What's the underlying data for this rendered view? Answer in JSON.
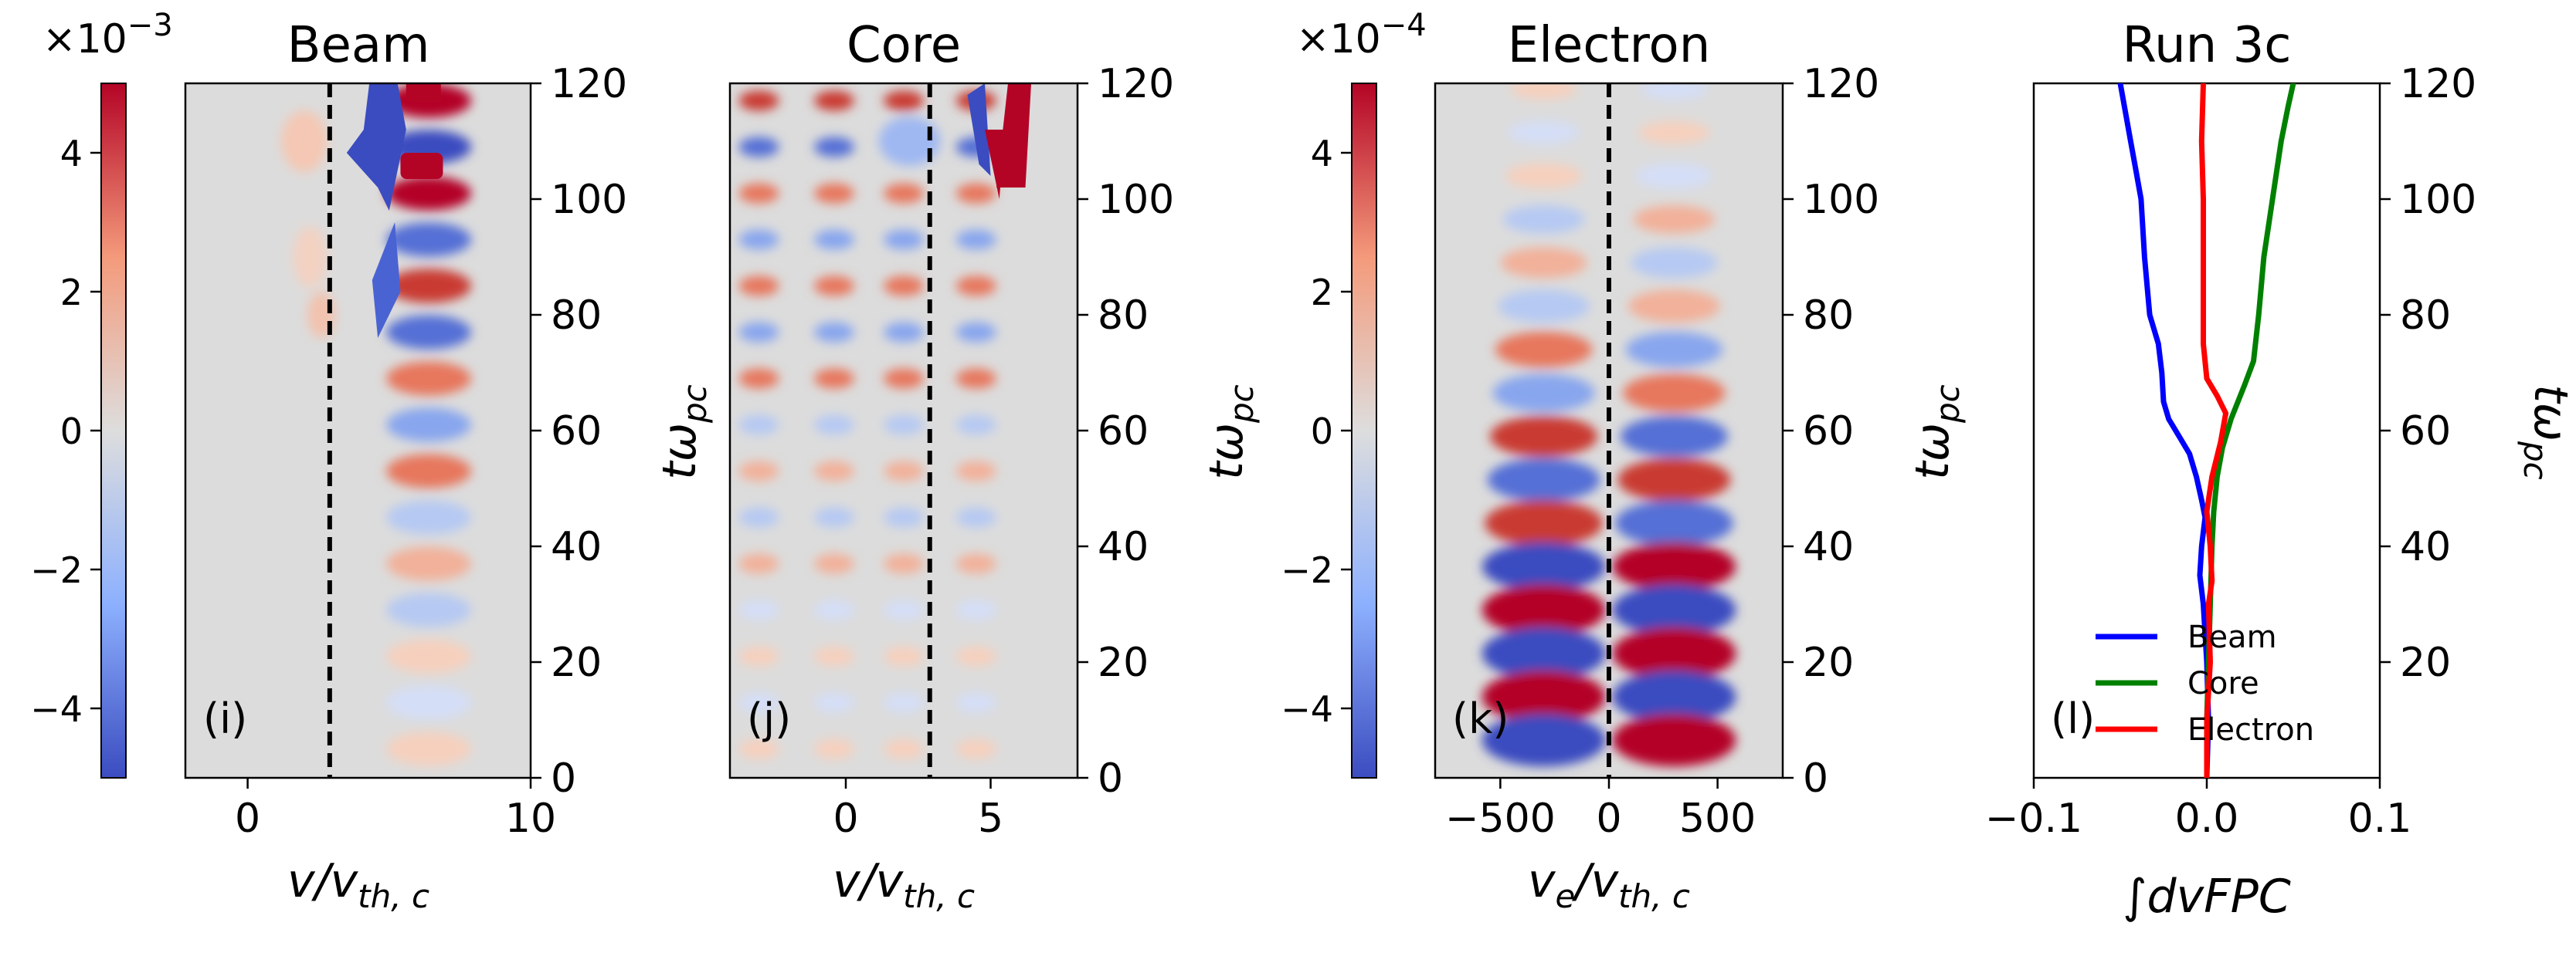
{
  "chart_data": [
    {
      "type": "heatmap",
      "panel": "i",
      "title": "Beam",
      "panel_label": "(i)",
      "xlabel": "v/v",
      "xlabel_sub": "th, c",
      "ylabel": "tω",
      "ylabel_sub": "pc",
      "xlim": [
        -2.2,
        10
      ],
      "ylim": [
        0,
        120
      ],
      "xticks": [
        0,
        10
      ],
      "xtick_labels": [
        "0",
        "10"
      ],
      "yticks": [
        0,
        20,
        40,
        60,
        80,
        100,
        120
      ],
      "ytick_labels": [
        "0",
        "20",
        "40",
        "60",
        "80",
        "100",
        "120"
      ],
      "dashed_vline_x": 2.9,
      "colorbar": {
        "exponent_label": "×10",
        "exponent_power": "−3",
        "range": [
          -5,
          5
        ],
        "ticks": [
          -4,
          -2,
          0,
          2,
          4
        ],
        "tick_labels": [
          "−4",
          "−2",
          "0",
          "2",
          "4"
        ]
      }
    },
    {
      "type": "heatmap",
      "panel": "j",
      "title": "Core",
      "panel_label": "(j)",
      "xlabel": "v/v",
      "xlabel_sub": "th, c",
      "ylabel": "tω",
      "ylabel_sub": "pc",
      "xlim": [
        -4,
        8
      ],
      "ylim": [
        0,
        120
      ],
      "xticks": [
        0,
        5
      ],
      "xtick_labels": [
        "0",
        "5"
      ],
      "yticks": [
        0,
        20,
        40,
        60,
        80,
        100,
        120
      ],
      "ytick_labels": [
        "0",
        "20",
        "40",
        "60",
        "80",
        "100",
        "120"
      ],
      "dashed_vline_x": 2.9
    },
    {
      "type": "heatmap",
      "panel": "k",
      "title": "Electron",
      "panel_label": "(k)",
      "xlabel": "v",
      "xlabel_sub1": "e",
      "xlabel_mid": "/v",
      "xlabel_sub": "th, c",
      "ylabel": "tω",
      "ylabel_sub": "pc",
      "xlim": [
        -800,
        800
      ],
      "ylim": [
        0,
        120
      ],
      "xticks": [
        -500,
        0,
        500
      ],
      "xtick_labels": [
        "−500",
        "0",
        "500"
      ],
      "yticks": [
        0,
        20,
        40,
        60,
        80,
        100,
        120
      ],
      "ytick_labels": [
        "0",
        "20",
        "40",
        "60",
        "80",
        "100",
        "120"
      ],
      "dashed_vline_x": 0,
      "colorbar": {
        "exponent_label": "×10",
        "exponent_power": "−4",
        "range": [
          -5,
          5
        ],
        "ticks": [
          -4,
          -2,
          0,
          2,
          4
        ],
        "tick_labels": [
          "−4",
          "−2",
          "0",
          "2",
          "4"
        ]
      }
    },
    {
      "type": "line",
      "panel": "l",
      "title": "Run 3c",
      "panel_label": "(l)",
      "xlabel": "∫dvFPC",
      "ylabel": "tω",
      "ylabel_sub": "pc",
      "xlim": [
        -0.1,
        0.1
      ],
      "ylim": [
        0,
        120
      ],
      "xticks": [
        -0.1,
        0.0,
        0.1
      ],
      "xtick_labels": [
        "−0.1",
        "0.0",
        "0.1"
      ],
      "yticks": [
        20,
        40,
        60,
        80,
        100,
        120
      ],
      "ytick_labels": [
        "20",
        "40",
        "60",
        "80",
        "100",
        "120"
      ],
      "legend_position": "lower-left",
      "series": [
        {
          "name": "Beam",
          "color": "#0000ff",
          "x": [
            0,
            0.001,
            0.0,
            -0.002,
            -0.004,
            -0.003,
            -0.001,
            -0.003,
            -0.006,
            -0.01,
            -0.016,
            -0.022,
            -0.025,
            -0.026,
            -0.028,
            -0.033,
            -0.036,
            -0.038,
            -0.041,
            -0.044,
            -0.047,
            -0.05
          ],
          "y": [
            0,
            10,
            20,
            30,
            35,
            40,
            45,
            48,
            52,
            56,
            59,
            62,
            65,
            70,
            75,
            80,
            90,
            100,
            105,
            110,
            115,
            120
          ]
        },
        {
          "name": "Core",
          "color": "#008000",
          "x": [
            0,
            0.0,
            0.001,
            0.002,
            0.003,
            0.004,
            0.006,
            0.009,
            0.014,
            0.022,
            0.027,
            0.03,
            0.033,
            0.038,
            0.043,
            0.047,
            0.05
          ],
          "y": [
            0,
            10,
            20,
            30,
            40,
            46,
            52,
            57,
            62,
            68,
            72,
            80,
            90,
            100,
            110,
            116,
            120
          ]
        },
        {
          "name": "Electron",
          "color": "#ff0000",
          "x": [
            0,
            0.0,
            0.002,
            0.001,
            0.003,
            0.002,
            0.0,
            0.003,
            0.008,
            0.011,
            0.006,
            0.0,
            -0.002,
            -0.002,
            -0.002,
            -0.003,
            -0.002
          ],
          "y": [
            0,
            10,
            20,
            30,
            34,
            40,
            46,
            52,
            58,
            63,
            66,
            69,
            75,
            90,
            100,
            110,
            120
          ]
        }
      ]
    }
  ]
}
